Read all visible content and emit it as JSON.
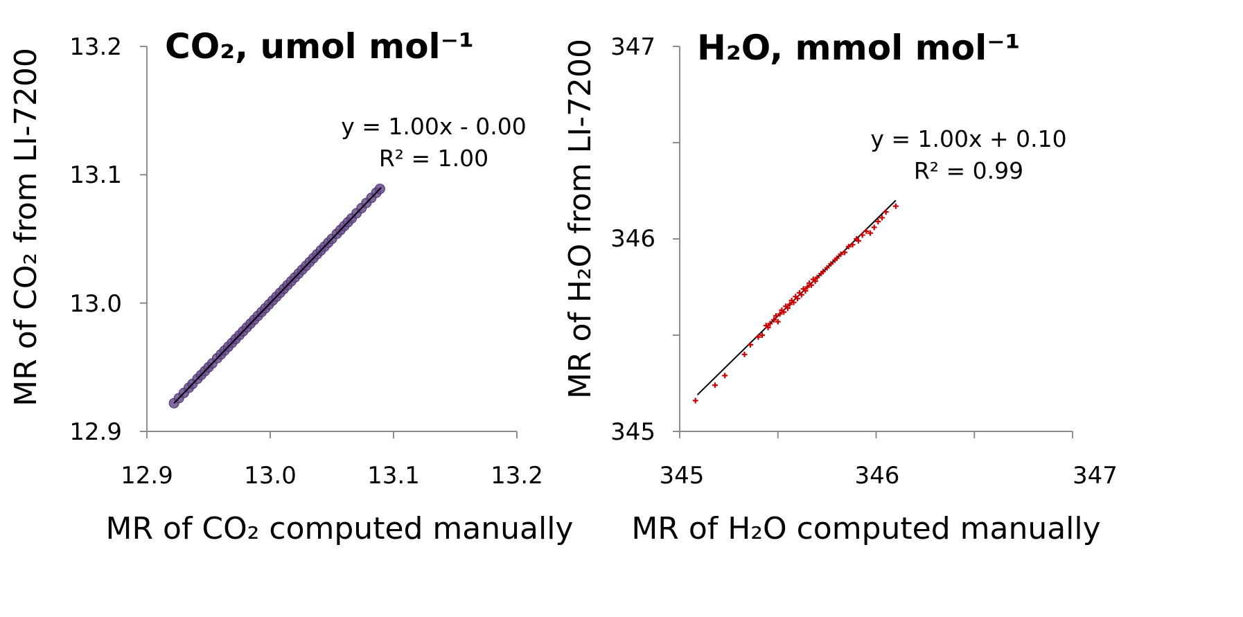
{
  "chart_data": [
    {
      "type": "scatter",
      "title": "CO₂, umol mol⁻¹",
      "xlabel": "MR of CO₂ computed manually",
      "ylabel": "MR of CO₂ from LI-7200",
      "xlim": [
        12.9,
        13.2
      ],
      "ylim": [
        12.9,
        13.2
      ],
      "xticks": [
        "12.9",
        "13.0",
        "13.1",
        "13.2"
      ],
      "yticks": [
        "12.9",
        "13.0",
        "13.1",
        "13.2"
      ],
      "equation": "y = 1.00x - 0.00",
      "r2_label": "R² = 1.00",
      "trendline": {
        "slope": 1.0,
        "intercept": 0.0,
        "x_range": [
          12.922,
          13.09
        ]
      },
      "marker_color": "#6b4b8e",
      "points_x": [
        12.922,
        12.926,
        12.93,
        12.934,
        12.937,
        12.941,
        12.944,
        12.947,
        12.95,
        12.953,
        12.957,
        12.96,
        12.963,
        12.966,
        12.969,
        12.972,
        12.975,
        12.978,
        12.981,
        12.984,
        12.987,
        12.99,
        12.993,
        12.996,
        12.999,
        13.002,
        13.005,
        13.008,
        13.011,
        13.014,
        13.017,
        13.02,
        13.023,
        13.026,
        13.029,
        13.032,
        13.035,
        13.038,
        13.041,
        13.044,
        13.047,
        13.05,
        13.054,
        13.057,
        13.06,
        13.063,
        13.066,
        13.07,
        13.074,
        13.078,
        13.082,
        13.086,
        13.089
      ],
      "points_y": [
        12.922,
        12.926,
        12.93,
        12.934,
        12.937,
        12.941,
        12.944,
        12.947,
        12.95,
        12.953,
        12.957,
        12.96,
        12.963,
        12.966,
        12.969,
        12.972,
        12.975,
        12.978,
        12.981,
        12.984,
        12.987,
        12.99,
        12.993,
        12.996,
        12.999,
        13.002,
        13.005,
        13.008,
        13.011,
        13.014,
        13.017,
        13.02,
        13.023,
        13.026,
        13.029,
        13.032,
        13.035,
        13.038,
        13.041,
        13.044,
        13.047,
        13.05,
        13.054,
        13.057,
        13.06,
        13.063,
        13.066,
        13.07,
        13.074,
        13.078,
        13.082,
        13.086,
        13.089
      ]
    },
    {
      "type": "scatter",
      "title": "H₂O, mmol mol⁻¹",
      "xlabel": "MR of H₂O computed manually",
      "ylabel": "MR of H₂O from LI-7200",
      "xlim": [
        345,
        347
      ],
      "ylim": [
        345,
        347
      ],
      "xticks": [
        "345",
        "346",
        "347"
      ],
      "yticks": [
        "345",
        "346",
        "347"
      ],
      "equation": "y = 1.00x + 0.10",
      "r2_label": "R² = 0.99",
      "trendline": {
        "slope": 1.0,
        "intercept": 0.1,
        "x_range": [
          345.09,
          346.1
        ]
      },
      "marker_color": "#cc0000",
      "points_x": [
        345.08,
        345.18,
        345.23,
        345.33,
        345.36,
        345.4,
        345.42,
        345.44,
        345.45,
        345.46,
        345.48,
        345.49,
        345.5,
        345.51,
        345.52,
        345.53,
        345.54,
        345.55,
        345.56,
        345.57,
        345.58,
        345.59,
        345.6,
        345.61,
        345.62,
        345.63,
        345.64,
        345.65,
        345.66,
        345.67,
        345.68,
        345.69,
        345.7,
        345.72,
        345.73,
        345.75,
        345.77,
        345.79,
        345.8,
        345.82,
        345.84,
        345.86,
        345.88,
        345.9,
        345.91,
        345.93,
        345.95,
        345.97,
        345.99,
        346.01,
        346.03,
        346.05,
        346.1
      ],
      "points_y": [
        345.16,
        345.24,
        345.29,
        345.4,
        345.45,
        345.49,
        345.5,
        345.55,
        345.54,
        345.56,
        345.58,
        345.6,
        345.57,
        345.61,
        345.63,
        345.62,
        345.65,
        345.64,
        345.66,
        345.68,
        345.67,
        345.7,
        345.69,
        345.72,
        345.71,
        345.74,
        345.73,
        345.75,
        345.77,
        345.76,
        345.79,
        345.78,
        345.8,
        345.82,
        345.83,
        345.85,
        345.87,
        345.89,
        345.9,
        345.92,
        345.93,
        345.96,
        345.97,
        346.0,
        345.99,
        346.02,
        346.04,
        346.03,
        346.06,
        346.09,
        346.11,
        346.14,
        346.17
      ]
    }
  ]
}
